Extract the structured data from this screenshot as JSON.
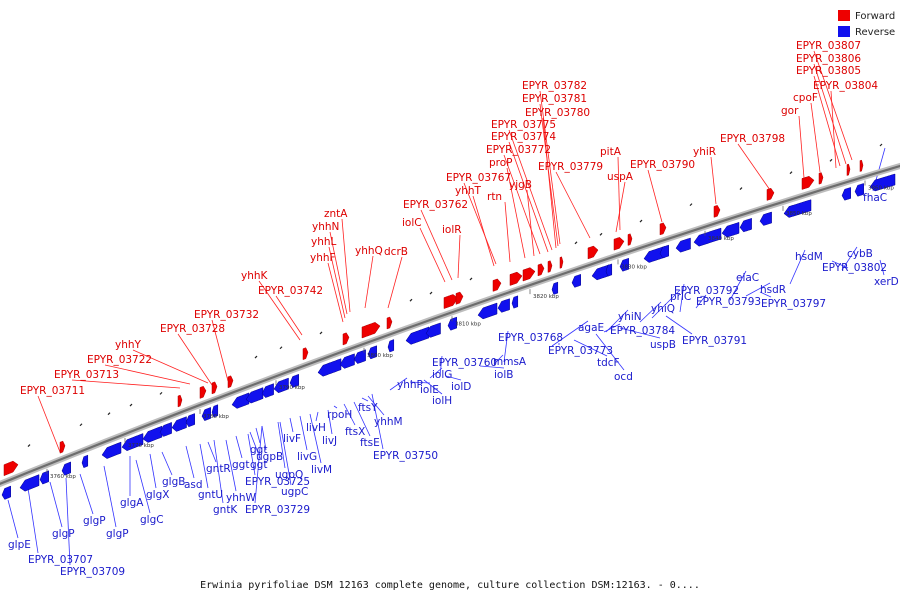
{
  "caption": "Erwinia pyrifoliae DSM 12163 complete genome, culture collection DSM:12163. - 0....",
  "legend": [
    {
      "label": "Forward",
      "color": "#ee0000"
    },
    {
      "label": "Reverse",
      "color": "#1111ee"
    }
  ],
  "colors": {
    "forward": "#ee0000",
    "reverse": "#1111ee",
    "backbone": "#888888"
  },
  "ticks": [
    "3760 kbp",
    "3770 kbp",
    "3780 kbp",
    "3790 kbp",
    "3800 kbp",
    "3810 kbp",
    "3820 kbp",
    "3830 kbp",
    "3840 kbp",
    "3850 kbp",
    "3860 kbp"
  ],
  "forward_labels": [
    "EPYR_03711",
    "EPYR_03713",
    "EPYR_03722",
    "yhhY",
    "EPYR_03728",
    "EPYR_03732",
    "yhhK",
    "EPYR_03742",
    "yhhF",
    "yhhL",
    "yhhN",
    "zntA",
    "yhhQ",
    "dcrB",
    "iolC",
    "EPYR_03762",
    "iolR",
    "yhhT",
    "EPYR_03767",
    "rtn",
    "proP",
    "yjgB",
    "EPYR_03772",
    "EPYR_03774",
    "EPYR_03775",
    "EPYR_03780",
    "EPYR_03781",
    "EPYR_03782",
    "EPYR_03779",
    "uspA",
    "pitA",
    "EPYR_03790",
    "yhiR",
    "EPYR_03798",
    "gor",
    "cpoF",
    "EPYR_03804",
    "EPYR_03805",
    "EPYR_03806",
    "EPYR_03807"
  ],
  "reverse_labels": [
    "glpE",
    "EPYR_03707",
    "glgP",
    "EPYR_03709",
    "glgP",
    "glgP",
    "glgC",
    "glgA",
    "glgX",
    "glgB",
    "asd",
    "gntU",
    "gntK",
    "gntR",
    "yhhW",
    "ggt",
    "ggt",
    "EPYR_03725",
    "ggt",
    "EPYR_03729",
    "ugpB",
    "ugpC",
    "ugpQ",
    "livF",
    "livG",
    "livM",
    "livH",
    "livJ",
    "rpoH",
    "ftsX",
    "ftsE",
    "ftsY",
    "yhhM",
    "EPYR_03750",
    "yhhP",
    "iolE",
    "iolH",
    "iolG",
    "iolD",
    "EPYR_03760",
    "iolB",
    "mmsA",
    "EPYR_03768",
    "agaE",
    "EPYR_03773",
    "tdcF",
    "ocd",
    "yhiN",
    "EPYR_03784",
    "uspB",
    "yhiQ",
    "prlC",
    "EPYR_03791",
    "EPYR_03792",
    "EPYR_03793",
    "elaC",
    "hsdR",
    "EPYR_03797",
    "hsdM",
    "cybB",
    "EPYR_03802",
    "fhaC",
    "xerD"
  ]
}
